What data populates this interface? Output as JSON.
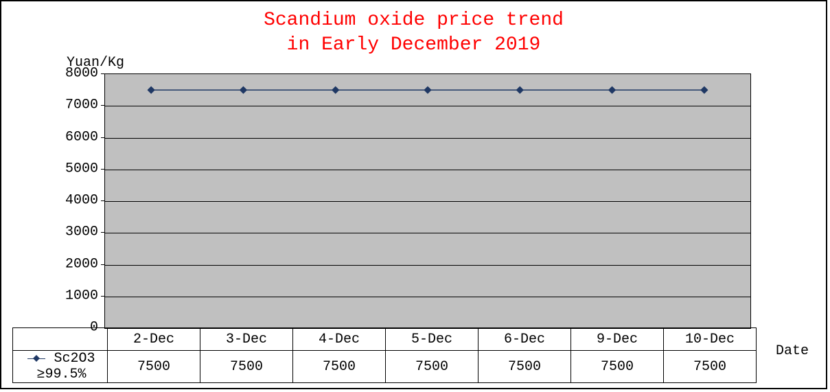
{
  "chart": {
    "type": "line",
    "title_line1": "Scandium oxide price trend",
    "title_line2": "in Early December 2019",
    "title_color": "#ff0000",
    "title_fontsize": 28,
    "ylabel": "Yuan/Kg",
    "xlabel": "Date",
    "label_fontsize": 20,
    "background_color": "#ffffff",
    "plot_background_color": "#c0c0c0",
    "grid_color": "#000000",
    "border_color": "#000000",
    "ylim": [
      0,
      8000
    ],
    "ytick_step": 1000,
    "yticks": [
      "0",
      "1000",
      "2000",
      "3000",
      "4000",
      "5000",
      "6000",
      "7000",
      "8000"
    ],
    "series": {
      "name": "Sc2O3 ≥99.5%",
      "color": "#1f3864",
      "marker": "diamond",
      "marker_size": 8,
      "line_width": 1.5,
      "categories": [
        "2-Dec",
        "3-Dec",
        "4-Dec",
        "5-Dec",
        "6-Dec",
        "9-Dec",
        "10-Dec"
      ],
      "values": [
        7500,
        7500,
        7500,
        7500,
        7500,
        7500,
        7500
      ]
    }
  }
}
